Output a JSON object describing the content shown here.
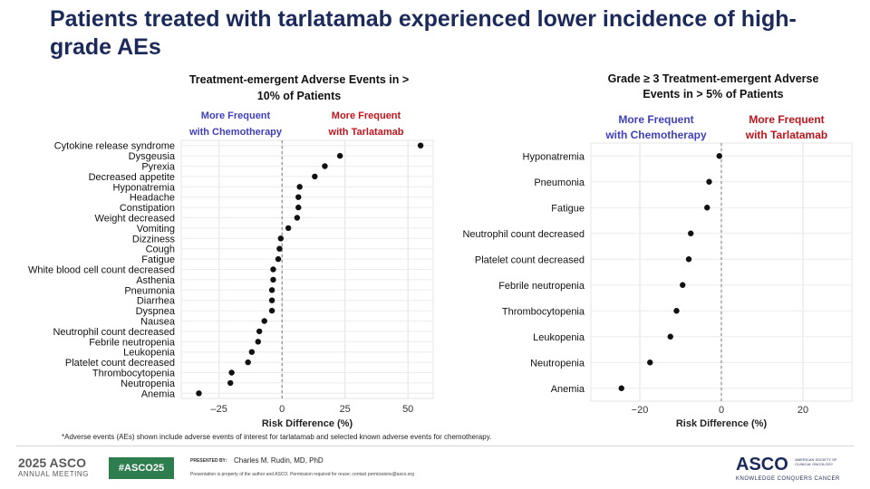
{
  "title": "Patients treated with tarlatamab experienced lower incidence of high-grade AEs",
  "footnote": "*Adverse events (AEs) shown include adverse events of interest for tarlatamab and selected known adverse events for chemotherapy.",
  "footer": {
    "asco_year": "2025 ASCO",
    "asco_sub": "ANNUAL MEETING",
    "hashtag": "#ASCO25",
    "presented_by": "PRESENTED BY:",
    "presenter": "Charles M. Rudin, MD, PhD",
    "disclaimer": "Presentation is property of the author and ASCO. Permission required for reuse; contact permissions@asco.org",
    "asco_logo": "ASCO",
    "asco_society": "AMERICAN SOCIETY OF CLINICAL ONCOLOGY",
    "asco_tagline": "KNOWLEDGE CONQUERS CANCER"
  },
  "colors": {
    "title": "#1b2a5a",
    "chemo": "#3f3fc0",
    "tarla": "#c0141c",
    "point": "#111111"
  },
  "chart_data": [
    {
      "type": "scatter",
      "title": "Treatment-emergent Adverse Events in > 10% of Patients",
      "xlabel": "Risk Difference (%)",
      "ylabel": "",
      "label_left": "More Frequent with Chemotherapy",
      "label_right": "More Frequent with Tarlatamab",
      "xlim": [
        -40,
        60
      ],
      "xticks": [
        -25,
        0,
        25,
        50
      ],
      "xtick_labels": [
        "–25",
        "0",
        "25",
        "50"
      ],
      "reference_line": 0,
      "grid": true,
      "categories": [
        "Cytokine release syndrome",
        "Dysgeusia",
        "Pyrexia",
        "Decreased appetite",
        "Hyponatremia",
        "Headache",
        "Constipation",
        "Weight decreased",
        "Vomiting",
        "Dizziness",
        "Cough",
        "Fatigue",
        "White blood cell count decreased",
        "Asthenia",
        "Pneumonia",
        "Diarrhea",
        "Dyspnea",
        "Nausea",
        "Neutrophil count decreased",
        "Febrile neutropenia",
        "Leukopenia",
        "Platelet count decreased",
        "Thrombocytopenia",
        "Neutropenia",
        "Anemia"
      ],
      "values": [
        55,
        23,
        17,
        13,
        7,
        6.5,
        6.5,
        6,
        2.5,
        -0.5,
        -1,
        -1.5,
        -3.5,
        -3.5,
        -4,
        -4,
        -4,
        -7,
        -9,
        -9.5,
        -12,
        -13.5,
        -20,
        -20.5,
        -33
      ]
    },
    {
      "type": "scatter",
      "title": "Grade ≥ 3 Treatment-emergent Adverse Events in > 5% of Patients",
      "xlabel": "Risk Difference (%)",
      "ylabel": "",
      "label_left": "More Frequent with Chemotherapy",
      "label_right": "More Frequent with Tarlatamab",
      "xlim": [
        -32,
        32
      ],
      "xticks": [
        -20,
        0,
        20
      ],
      "xtick_labels": [
        "−20",
        "0",
        "20"
      ],
      "reference_line": 0,
      "grid": true,
      "categories": [
        "Hyponatremia",
        "Pneumonia",
        "Fatigue",
        "Neutrophil count decreased",
        "Platelet count decreased",
        "Febrile neutropenia",
        "Thrombocytopenia",
        "Leukopenia",
        "Neutropenia",
        "Anemia"
      ],
      "values": [
        -0.5,
        -3,
        -3.5,
        -7.5,
        -8,
        -9.5,
        -11,
        -12.5,
        -17.5,
        -24.5
      ]
    }
  ]
}
